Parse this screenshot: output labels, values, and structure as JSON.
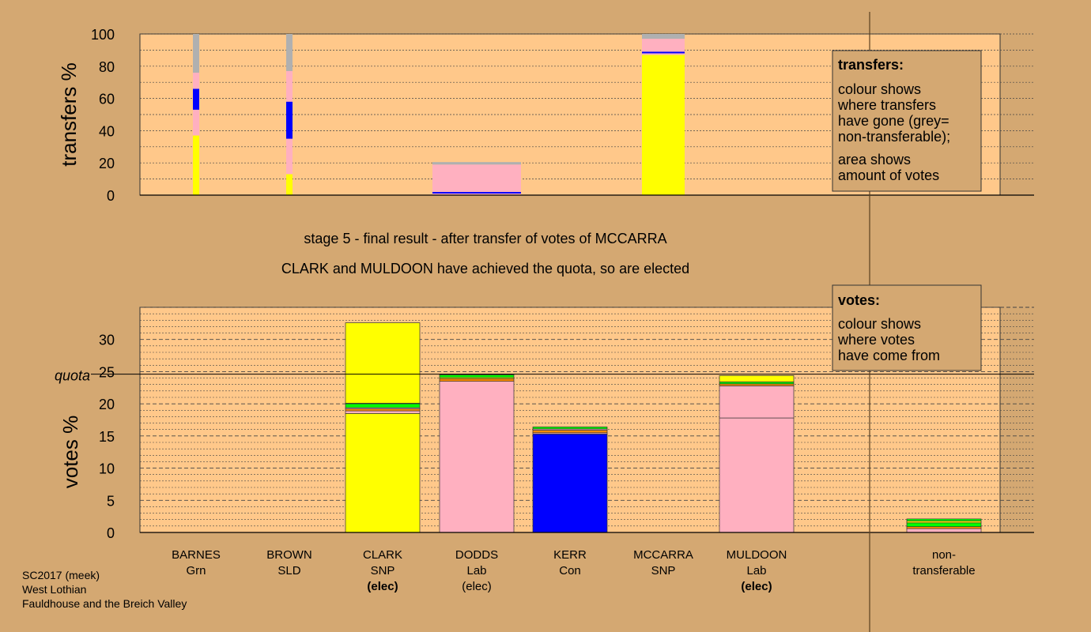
{
  "chart_data": [
    {
      "type": "bar",
      "role": "transfers",
      "ylabel": "transfers %",
      "ylim": [
        0,
        100
      ],
      "yticks": [
        0,
        20,
        40,
        60,
        80,
        100
      ],
      "grid": true,
      "colors": {
        "Grn": "#00ff00",
        "SLD": "#ff8c00",
        "SNP": "#ffff00",
        "Lab": "#ffb0c0",
        "Con": "#0000ff",
        "nontransferable": "#b0b0b0"
      },
      "categories": [
        "BARNES",
        "BROWN",
        "CLARK",
        "DODDS",
        "KERR",
        "MCCARRA",
        "MULDOON",
        "non-transferable"
      ],
      "bars": [
        {
          "candidate": "BARNES",
          "stack": [
            {
              "source": "SNP",
              "value": 37
            },
            {
              "source": "Lab",
              "value": 16
            },
            {
              "source": "Con",
              "value": 13
            },
            {
              "source": "Lab",
              "value": 10
            },
            {
              "source": "nontransferable",
              "value": 24
            }
          ]
        },
        {
          "candidate": "BROWN",
          "stack": [
            {
              "source": "SNP",
              "value": 13
            },
            {
              "source": "Lab",
              "value": 22
            },
            {
              "source": "Con",
              "value": 23
            },
            {
              "source": "Lab",
              "value": 19
            },
            {
              "source": "nontransferable",
              "value": 23
            }
          ]
        },
        {
          "candidate": "DODDS",
          "stack": [
            {
              "source": "Lab",
              "value": 1
            },
            {
              "source": "Con",
              "value": 1
            },
            {
              "source": "Lab",
              "value": 17
            },
            {
              "source": "nontransferable",
              "value": 1.5
            }
          ]
        },
        {
          "candidate": "MCCARRA",
          "stack": [
            {
              "source": "SNP",
              "value": 87
            },
            {
              "source": "Lab",
              "value": 1
            },
            {
              "source": "Con",
              "value": 1
            },
            {
              "source": "Lab",
              "value": 8
            },
            {
              "source": "nontransferable",
              "value": 3
            }
          ]
        }
      ]
    },
    {
      "type": "bar",
      "role": "votes",
      "ylabel": "votes %",
      "ylim": [
        0,
        35
      ],
      "yticks": [
        0,
        5,
        10,
        15,
        20,
        25,
        30
      ],
      "grid": true,
      "quota": 24.6,
      "quota_label": "quota",
      "categories": [
        "BARNES",
        "BROWN",
        "CLARK",
        "DODDS",
        "KERR",
        "MCCARRA",
        "MULDOON",
        "non-transferable"
      ],
      "bars": [
        {
          "candidate": "CLARK",
          "stack": [
            {
              "source": "SNP",
              "value": 18.5
            },
            {
              "source": "Lab",
              "value": 0.4
            },
            {
              "source": "SLD",
              "value": 0.3
            },
            {
              "source": "Lab",
              "value": 0.2
            },
            {
              "source": "Grn",
              "value": 0.6
            },
            {
              "source": "SNP",
              "value": 0.1
            },
            {
              "source": "SNP",
              "value": 12.5
            }
          ]
        },
        {
          "candidate": "DODDS",
          "stack": [
            {
              "source": "Lab",
              "value": 23.5
            },
            {
              "source": "SLD",
              "value": 0.4
            },
            {
              "source": "SNP",
              "value": 0.2
            },
            {
              "source": "Grn",
              "value": 0.4
            },
            {
              "source": "SNP",
              "value": 0.1
            }
          ]
        },
        {
          "candidate": "KERR",
          "stack": [
            {
              "source": "Con",
              "value": 15.3
            },
            {
              "source": "Lab",
              "value": 0.2
            },
            {
              "source": "SLD",
              "value": 0.4
            },
            {
              "source": "Lab",
              "value": 0.2
            },
            {
              "source": "Grn",
              "value": 0.3
            }
          ]
        },
        {
          "candidate": "MULDOON",
          "stack": [
            {
              "source": "Lab",
              "value": 17.8
            },
            {
              "source": "Lab",
              "value": 5.0
            },
            {
              "source": "SLD",
              "value": 0.3
            },
            {
              "source": "Grn",
              "value": 0.3
            },
            {
              "source": "SNP",
              "value": 1.0
            }
          ]
        },
        {
          "candidate": "non-transferable",
          "stack": [
            {
              "source": "Lab",
              "value": 0.6
            },
            {
              "source": "SLD",
              "value": 0.3
            },
            {
              "source": "Grn",
              "value": 0.6
            },
            {
              "source": "SNP",
              "value": 0.3
            },
            {
              "source": "Grn",
              "value": 0.3
            }
          ]
        }
      ]
    }
  ],
  "stage_title": "stage 5 - final result - after transfer of votes of MCCARRA",
  "stage_subtitle": "CLARK and MULDOON have achieved the quota, so are elected",
  "candidates": [
    {
      "name": "BARNES",
      "party": "Grn",
      "status": ""
    },
    {
      "name": "BROWN",
      "party": "SLD",
      "status": ""
    },
    {
      "name": "CLARK",
      "party": "SNP",
      "status": "(elec)",
      "bold": true
    },
    {
      "name": "DODDS",
      "party": "Lab",
      "status": "(elec)",
      "bold": false
    },
    {
      "name": "KERR",
      "party": "Con",
      "status": ""
    },
    {
      "name": "MCCARRA",
      "party": "SNP",
      "status": ""
    },
    {
      "name": "MULDOON",
      "party": "Lab",
      "status": "(elec)",
      "bold": true
    }
  ],
  "nontransferable_label": {
    "line1": "non-",
    "line2": "transferable"
  },
  "legend_transfers": {
    "title": "transfers:",
    "lines": [
      "colour shows",
      "where transfers",
      "have gone (grey=",
      "non-transferable);"
    ],
    "lines2": [
      "area shows",
      "amount of votes"
    ]
  },
  "legend_votes": {
    "title": "votes:",
    "lines": [
      "colour shows",
      "where votes",
      "have come from"
    ]
  },
  "footer": [
    "SC2017 (meek)",
    "West Lothian",
    "Fauldhouse and the Breich Valley"
  ]
}
